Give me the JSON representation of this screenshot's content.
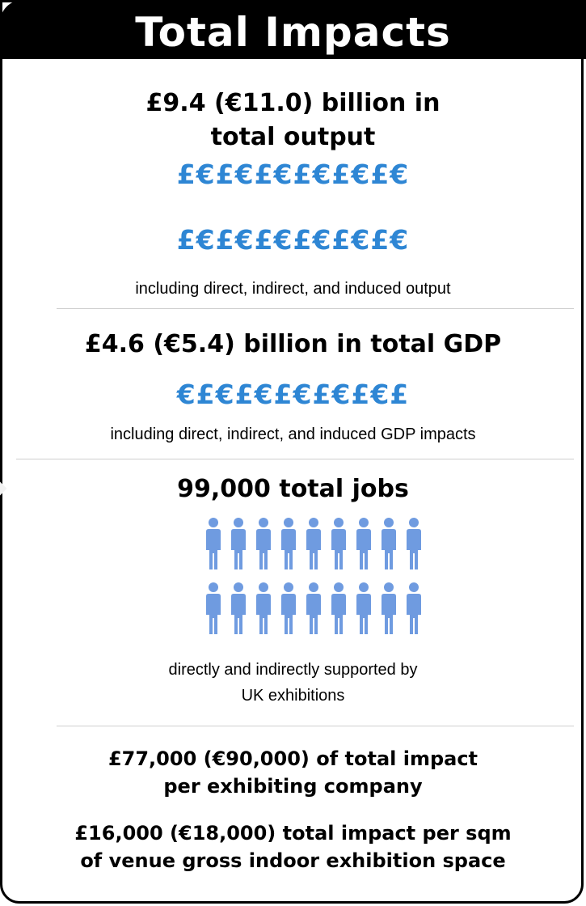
{
  "title": "Total Impacts",
  "output": {
    "headline_line1": "£9.4 (€11.0) billion in",
    "headline_line2": "total output",
    "symbols_line1": "£€£€£€£€£€£€",
    "symbols_line2": "£€£€£€£€£€£€",
    "description": "including direct, indirect, and induced output"
  },
  "gdp": {
    "headline": "£4.6 (€5.4) billion in total GDP",
    "symbols": "€£€£€£€£€£€£",
    "description": "including direct, indirect, and induced GDP impacts"
  },
  "jobs": {
    "headline": "99,000 total jobs",
    "icon": "person-icon",
    "icon_rows": 2,
    "icons_per_row": 9,
    "icon_color": "#6f9be0",
    "description_line1": "directly and indirectly supported by",
    "description_line2": "UK exhibitions"
  },
  "per_company": {
    "line1": "£77,000 (€90,000) of total impact",
    "line2": "per exhibiting company"
  },
  "per_sqm": {
    "line1": "£16,000 (€18,000) total impact per sqm",
    "line2": "of venue gross indoor exhibition space"
  },
  "colors": {
    "header_bg": "#000000",
    "accent_blue": "#2e86d4",
    "person_blue": "#6f9be0"
  }
}
